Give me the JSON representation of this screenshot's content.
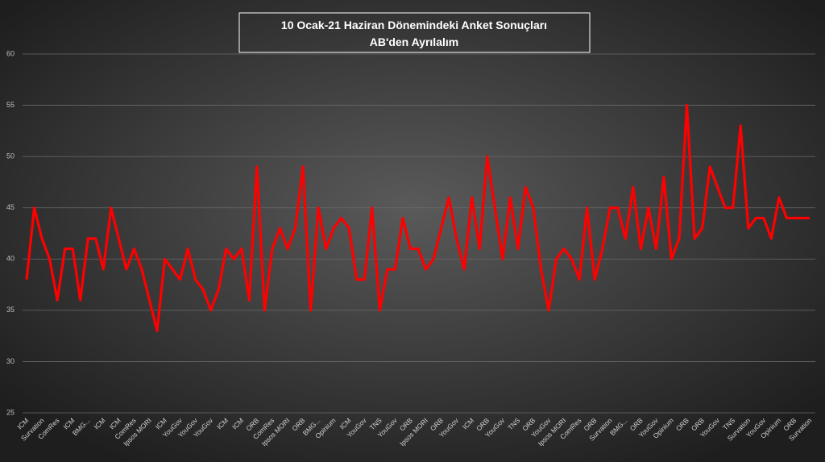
{
  "chart_data": {
    "type": "line",
    "title": "10 Ocak-21 Haziran Dönemindeki Anket Sonuçları",
    "subtitle": "AB'den Ayrılalım",
    "categories": [
      "ICM",
      null,
      "Survation",
      null,
      "ComRes",
      null,
      "ICM",
      null,
      "BMG...",
      null,
      "ICM",
      null,
      "ICM",
      null,
      "ComRes",
      null,
      "Ipsos MORI",
      null,
      "ICM",
      null,
      "YouGov",
      null,
      "YouGov",
      null,
      "YouGov",
      null,
      "ICM",
      null,
      "ICM",
      null,
      "ORB",
      null,
      "ComRes",
      null,
      "Ipsos MORI",
      null,
      "ORB",
      null,
      "BMG...",
      null,
      "Opinium",
      null,
      "ICM",
      null,
      "YouGov",
      null,
      "TNS",
      null,
      "YouGov",
      null,
      "ORB",
      null,
      "Ipsos MORI",
      null,
      "ORB",
      null,
      "YouGov",
      null,
      "ICM",
      null,
      "ORB",
      null,
      "YouGov",
      null,
      "TNS",
      null,
      "ORB",
      null,
      "YouGov",
      null,
      "Ipsos MORI",
      null,
      "ComRes",
      null,
      "ORB",
      null,
      "Survation",
      null,
      "BMG...",
      null,
      "ORB",
      null,
      "YouGov",
      null,
      "Opinium",
      null,
      "ORB",
      null,
      "ORB",
      null,
      "YouGov",
      null,
      "TNS",
      null,
      "Survation",
      null,
      "YouGov",
      null,
      "Opinium",
      null,
      "ORB",
      null,
      "Survation"
    ],
    "series": [
      {
        "name": "AB'den Ayrılalım",
        "color": "#ff0000",
        "values": [
          38,
          45,
          42,
          40,
          36,
          41,
          41,
          36,
          42,
          42,
          39,
          45,
          42,
          39,
          41,
          39,
          36,
          33,
          40,
          39,
          38,
          41,
          38,
          37,
          35,
          37,
          41,
          40,
          41,
          36,
          49,
          35,
          41,
          43,
          41,
          43,
          49,
          35,
          45,
          41,
          43,
          44,
          43,
          38,
          38,
          45,
          35,
          39,
          39,
          44,
          41,
          41,
          39,
          40,
          43,
          46,
          42,
          39,
          46,
          41,
          50,
          45,
          40,
          46,
          41,
          47,
          45,
          39,
          35,
          40,
          41,
          40,
          38,
          45,
          38,
          41,
          45,
          45,
          42,
          47,
          41,
          45,
          41,
          48,
          40,
          42,
          55,
          42,
          43,
          49,
          47,
          45,
          45,
          53,
          43,
          44,
          44,
          42,
          46,
          44,
          44,
          44,
          44
        ]
      }
    ],
    "ylim": [
      25,
      60
    ],
    "yticks": [
      25,
      30,
      35,
      40,
      45,
      50,
      55,
      60
    ],
    "grid": true
  }
}
